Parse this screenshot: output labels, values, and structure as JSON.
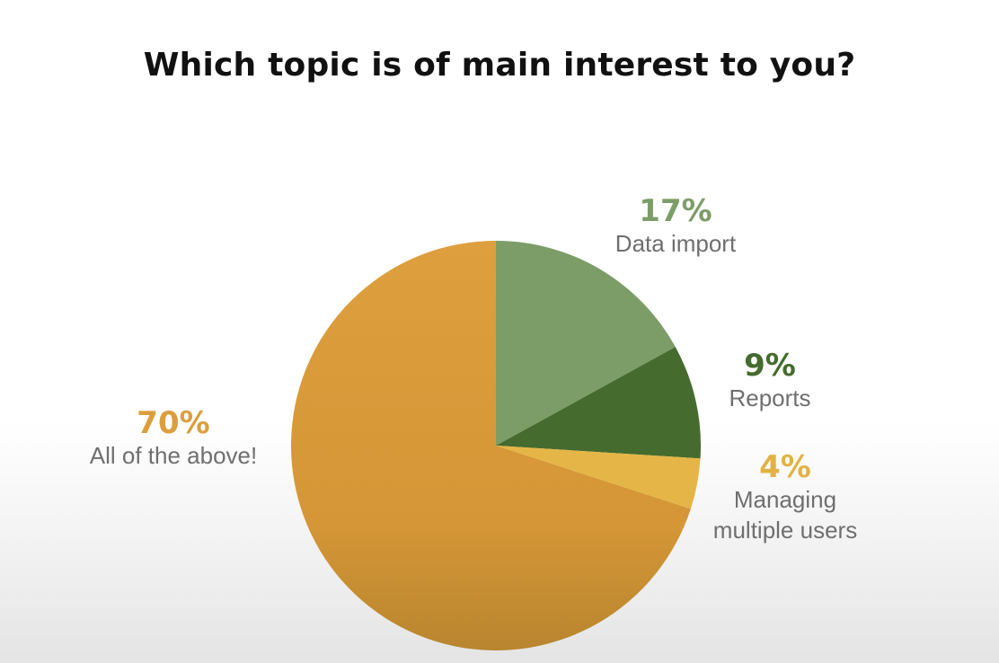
{
  "chart_data": {
    "type": "pie",
    "title": "Which topic is of main interest to you?",
    "slices": [
      {
        "label": "Data import",
        "value": 17,
        "display": "17%",
        "color": "#7d9d68",
        "label_color": "#7d9d68"
      },
      {
        "label": "Reports",
        "value": 9,
        "display": "9%",
        "color": "#456b2e",
        "label_color": "#456b2e"
      },
      {
        "label": "Managing multiple users",
        "value": 4,
        "display": "4%",
        "label_lines": [
          "Managing",
          "multiple users"
        ],
        "color": "#e6b547",
        "label_color": "#e2b244"
      },
      {
        "label": "All of the above!",
        "value": 70,
        "display": "70%",
        "color": "#dc9e3d",
        "label_color": "#dc9e3d"
      }
    ],
    "start_angle": "12 o'clock",
    "direction": "clockwise",
    "legend": "none",
    "data_labels": "outside"
  }
}
